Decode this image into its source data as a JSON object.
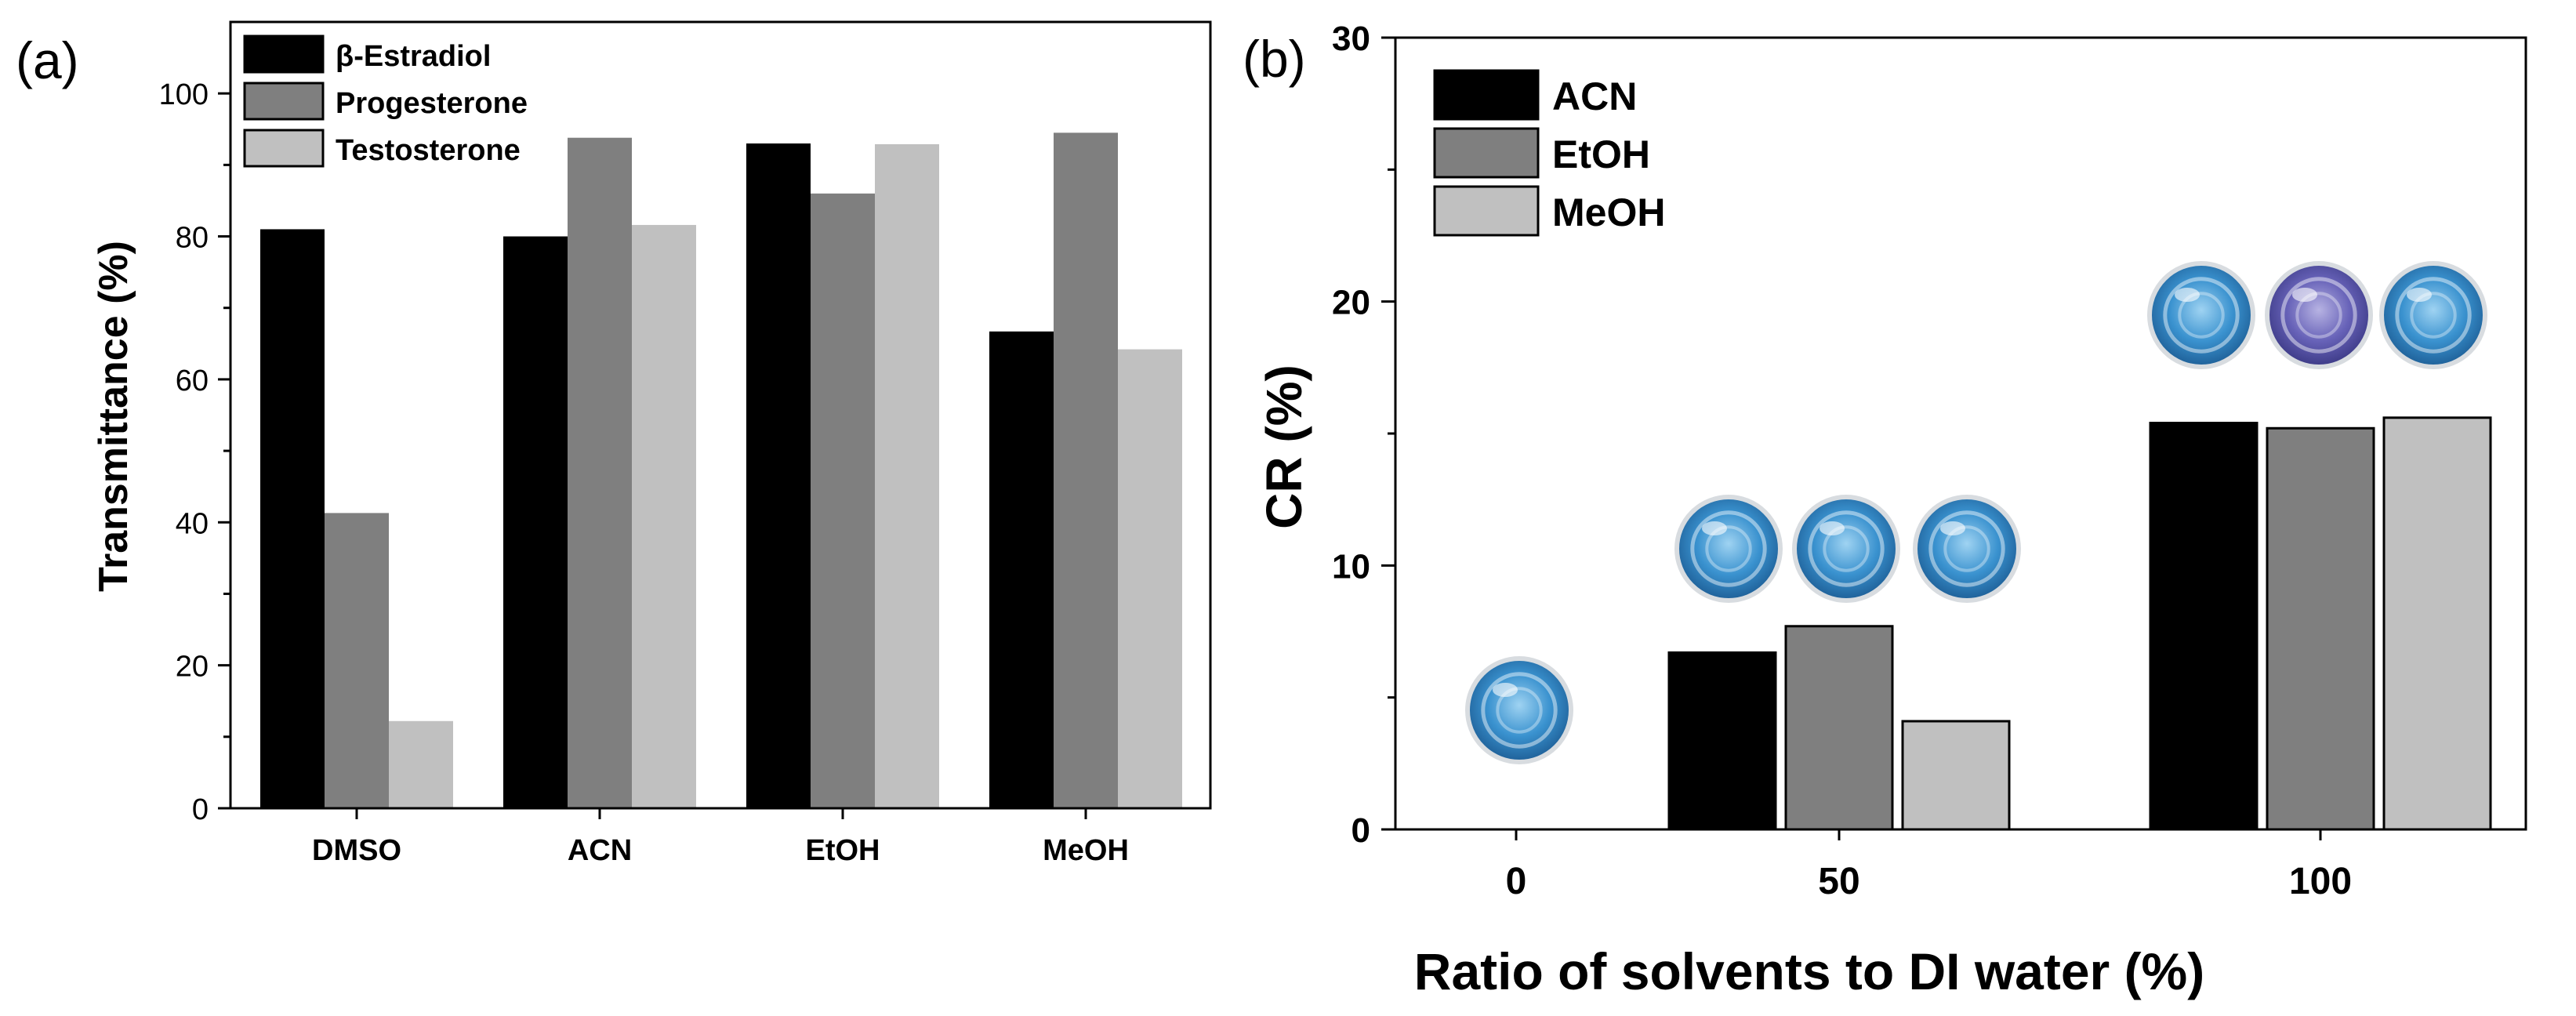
{
  "colors": {
    "black": "#000000",
    "dark_gray": "#7f7f7f",
    "light_gray": "#c0c0c0",
    "axis": "#000000"
  },
  "chart_data": [
    {
      "panel_label": "(a)",
      "type": "bar",
      "categories": [
        "DMSO",
        "ACN",
        "EtOH",
        "MeOH"
      ],
      "series": [
        {
          "name": "β-Estradiol",
          "color": "#000000",
          "values": [
            81,
            80,
            93,
            66.7
          ]
        },
        {
          "name": "Progesterone",
          "color": "#7f7f7f",
          "values": [
            41.3,
            93.8,
            86,
            94.5
          ]
        },
        {
          "name": "Testosterone",
          "color": "#c0c0c0",
          "values": [
            12.2,
            81.6,
            92.9,
            64.2
          ]
        }
      ],
      "xlabel": "",
      "ylabel": "Transmittance (%)",
      "ylim": [
        0,
        110
      ],
      "yticks": [
        0,
        20,
        40,
        60,
        80,
        100
      ],
      "ytick_labels": [
        "0",
        "20",
        "40",
        "60",
        "80",
        "100"
      ],
      "legend": "top-left",
      "grid": false
    },
    {
      "panel_label": "(b)",
      "type": "bar",
      "categories": [
        "0",
        "50",
        "100"
      ],
      "series": [
        {
          "name": "ACN",
          "color": "#000000",
          "values": [
            null,
            6.7,
            15.4
          ]
        },
        {
          "name": "EtOH",
          "color": "#7f7f7f",
          "values": [
            null,
            7.7,
            15.2
          ]
        },
        {
          "name": "MeOH",
          "color": "#c0c0c0",
          "values": [
            null,
            4.1,
            15.6
          ]
        }
      ],
      "xlabel": "Ratio of solvents to DI water (%)",
      "ylabel": "CR (%)",
      "ylim": [
        0,
        30
      ],
      "yticks": [
        0,
        10,
        20,
        30
      ],
      "ytick_labels": [
        "0",
        "10",
        "20",
        "30"
      ],
      "legend": "top-left",
      "grid": false,
      "annotations": [
        {
          "type": "sample-photo",
          "category": "0",
          "count": 1,
          "tint": "#2f87c0"
        },
        {
          "type": "sample-photo",
          "category": "50",
          "count": 3,
          "tint": "#3a8fcc"
        },
        {
          "type": "sample-photo",
          "category": "100",
          "count": 3,
          "tint": "#5a5fb0"
        }
      ]
    }
  ]
}
